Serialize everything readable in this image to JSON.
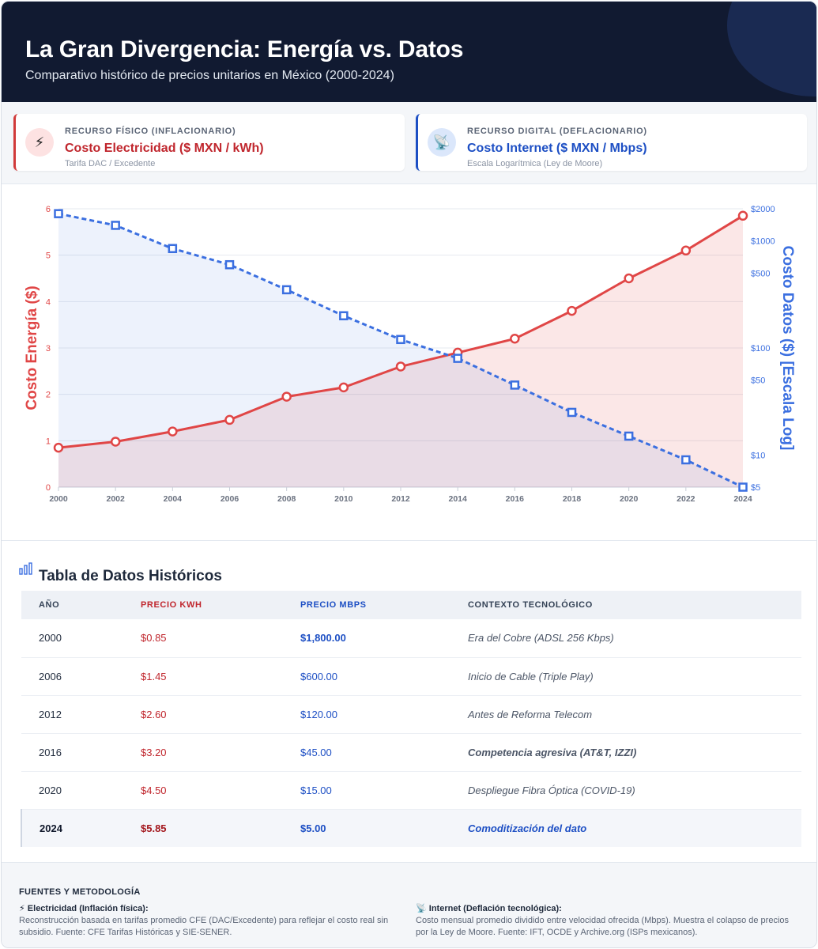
{
  "header": {
    "title": "La Gran Divergencia: Energía vs. Datos",
    "subtitle": "Comparativo histórico de precios unitarios en México (2000-2024)",
    "bg_color": "#111a31"
  },
  "kpis": {
    "physical": {
      "icon": "lightning-icon",
      "glyph": "⚡",
      "label": "RECURSO FÍSICO (INFLACIONARIO)",
      "value": "Costo Electricidad ($ MXN / kWh)",
      "sub": "Tarifa DAC / Excedente",
      "color": "#d13a3a"
    },
    "digital": {
      "icon": "satellite-dish-icon",
      "glyph": "📡",
      "label": "RECURSO DIGITAL (DEFLACIONARIO)",
      "value": "Costo Internet ($ MXN / Mbps)",
      "sub": "Escala Logarítmica (Ley de Moore)",
      "color": "#1d4fc4"
    }
  },
  "chart_data": {
    "type": "line",
    "x": [
      2000,
      2002,
      2004,
      2006,
      2008,
      2010,
      2012,
      2014,
      2016,
      2018,
      2020,
      2022,
      2024
    ],
    "series": [
      {
        "name": "Costo Electricidad ($ MXN / kWh)",
        "axis": "left",
        "color": "#e04646",
        "style": "solid",
        "marker": "circle",
        "fill": true,
        "values": [
          0.85,
          0.98,
          1.2,
          1.45,
          1.95,
          2.15,
          2.6,
          2.9,
          3.2,
          3.8,
          4.5,
          5.1,
          5.85
        ]
      },
      {
        "name": "Costo Internet ($ MXN / Mbps)",
        "axis": "right",
        "color": "#3b6fe0",
        "style": "dashed",
        "marker": "square",
        "fill": true,
        "values": [
          1800,
          1400,
          850,
          600,
          350,
          200,
          120,
          80,
          45,
          25,
          15,
          9,
          5
        ]
      }
    ],
    "y_left": {
      "label": "Costo Energía ($)",
      "ylim": [
        0,
        6
      ],
      "ticks": [
        0,
        1,
        2,
        3,
        4,
        5,
        6
      ],
      "color": "#e04646"
    },
    "y_right": {
      "label": "Costo Datos ($) [Escala Log]",
      "scale": "log",
      "ylim": [
        5,
        2000
      ],
      "ticks": [
        5,
        10,
        50,
        100,
        500,
        1000,
        2000
      ],
      "tick_labels": [
        "$5",
        "$10",
        "$50",
        "$100",
        "$500",
        "$1000",
        "$2000"
      ],
      "color": "#3b6fe0"
    },
    "grid": true,
    "legend": "none"
  },
  "table": {
    "title": "Tabla de Datos Históricos",
    "columns": [
      "AÑO",
      "PRECIO KWH",
      "PRECIO MBPS",
      "CONTEXTO TECNOLÓGICO"
    ],
    "rows": [
      {
        "year": "2000",
        "kwh": "$0.85",
        "mbps": "$1,800.00",
        "context": "Era del Cobre (ADSL 256 Kbps)"
      },
      {
        "year": "2006",
        "kwh": "$1.45",
        "mbps": "$600.00",
        "context": "Inicio de Cable (Triple Play)"
      },
      {
        "year": "2012",
        "kwh": "$2.60",
        "mbps": "$120.00",
        "context": "Antes de Reforma Telecom"
      },
      {
        "year": "2016",
        "kwh": "$3.20",
        "mbps": "$45.00",
        "context": "Competencia agresiva (AT&T, IZZI)"
      },
      {
        "year": "2020",
        "kwh": "$4.50",
        "mbps": "$15.00",
        "context": "Despliegue Fibra Óptica (COVID-19)"
      },
      {
        "year": "2024",
        "kwh": "$5.85",
        "mbps": "$5.00",
        "context": "Comoditización del dato"
      }
    ]
  },
  "footer": {
    "title": "FUENTES Y METODOLOGÍA",
    "electricity": {
      "glyph": "⚡",
      "title": "Electricidad (Inflación física):",
      "body": "Reconstrucción basada en tarifas promedio CFE (DAC/Excedente) para reflejar el costo real sin subsidio. Fuente: CFE Tarifas Históricas y SIE-SENER."
    },
    "internet": {
      "glyph": "📡",
      "title": "Internet (Deflación tecnológica):",
      "body": "Costo mensual promedio dividido entre velocidad ofrecida (Mbps). Muestra el colapso de precios por la Ley de Moore. Fuente: IFT, OCDE y Archive.org (ISPs mexicanos)."
    }
  }
}
